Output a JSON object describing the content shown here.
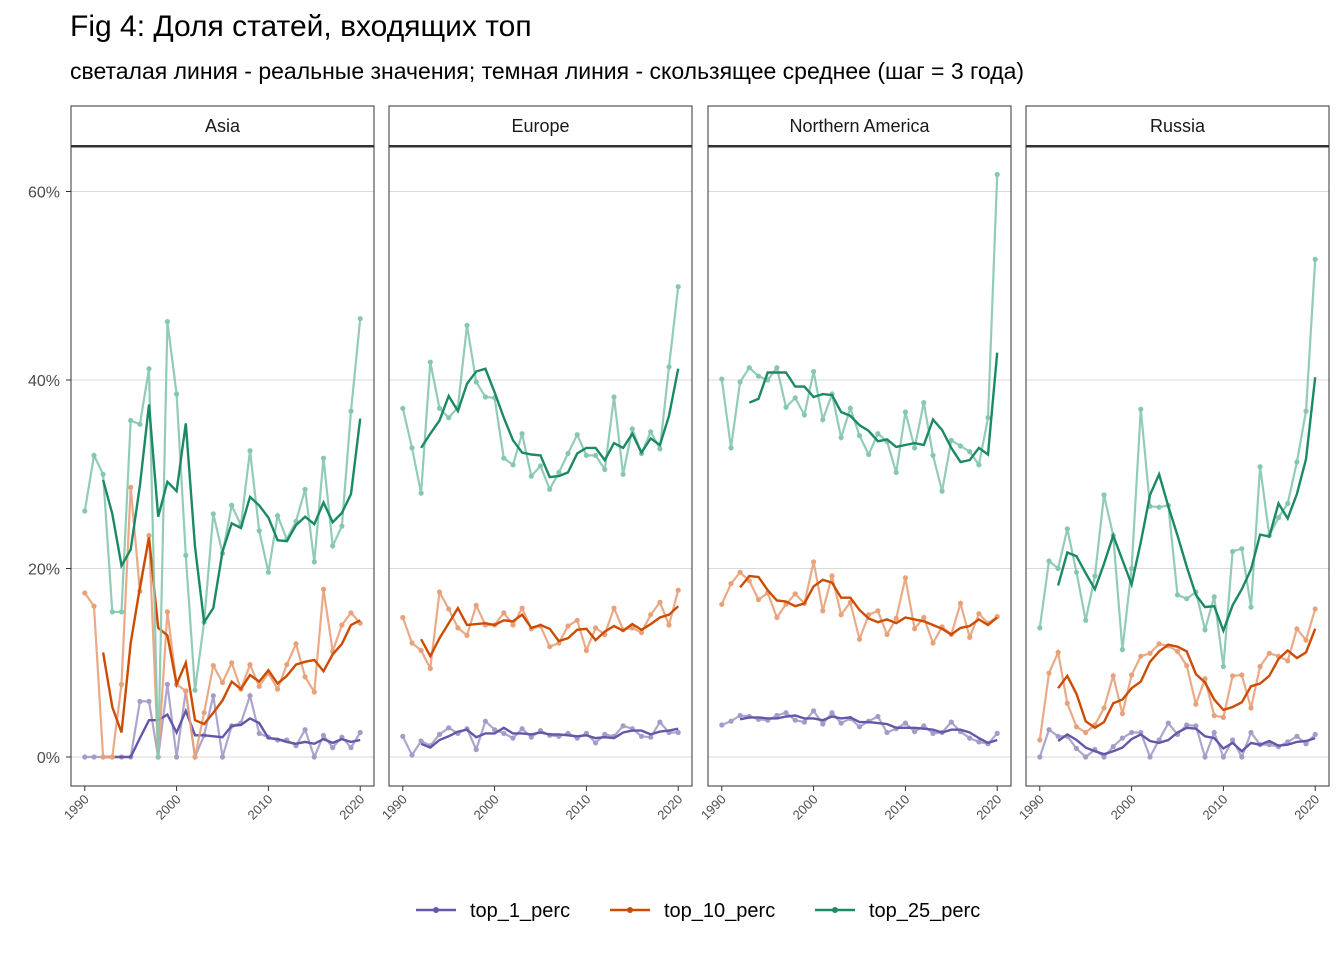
{
  "chart_data": {
    "type": "line",
    "title": "Fig 4: Доля статей, входящих топ",
    "subtitle": "светалая линия - реальные значения; темная линия - скользящее среднее (шаг = 3 года)",
    "xlabel": "",
    "ylabel": "",
    "x_ticks": [
      "1990",
      "2000",
      "2010",
      "2020"
    ],
    "y_ticks": [
      "0%",
      "20%",
      "40%",
      "60%"
    ],
    "ylim": [
      -3,
      65
    ],
    "xlim": [
      1988.5,
      2021.5
    ],
    "grid": true,
    "legend_position": "bottom",
    "x": [
      1990,
      1991,
      1992,
      1993,
      1994,
      1995,
      1996,
      1997,
      1998,
      1999,
      2000,
      2001,
      2002,
      2003,
      2004,
      2005,
      2006,
      2007,
      2008,
      2009,
      2010,
      2011,
      2012,
      2013,
      2014,
      2015,
      2016,
      2017,
      2018,
      2019,
      2020
    ],
    "series_meta": [
      {
        "key": "top_1_perc",
        "name": "top_1_perc",
        "color_light": "#a39cc9",
        "color_dark": "#6656a8"
      },
      {
        "key": "top_10_perc",
        "name": "top_10_perc",
        "color_light": "#e9a17a",
        "color_dark": "#cc4c02"
      },
      {
        "key": "top_25_perc",
        "name": "top_25_perc",
        "color_light": "#86c7af",
        "color_dark": "#1b8a64"
      }
    ],
    "panels": [
      {
        "name": "Asia",
        "top_1_perc": {
          "values": [
            0,
            0,
            0,
            0,
            0,
            0,
            5.9,
            5.9,
            0,
            7.7,
            0,
            7.0,
            0,
            2.3,
            6.5,
            0,
            3.3,
            3.6,
            6.5,
            2.5,
            2.1,
            1.8,
            1.8,
            1.2,
            2.9,
            0,
            2.3,
            1.0,
            2.1,
            1.0,
            2.6
          ],
          "smoothed": [
            null,
            null,
            0,
            0,
            0,
            0,
            2.0,
            3.9,
            3.9,
            4.5,
            2.6,
            4.9,
            2.3,
            2.3,
            2.2,
            2.1,
            3.3,
            3.4,
            4.1,
            3.6,
            2.0,
            1.9,
            1.6,
            1.4,
            1.6,
            1.4,
            1.9,
            1.5,
            1.9,
            1.6,
            1.8
          ]
        },
        "top_10_perc": {
          "values": [
            17.4,
            16.0,
            0,
            0,
            7.7,
            28.6,
            17.6,
            23.5,
            0,
            15.4,
            7.7,
            7.0,
            0,
            4.7,
            9.7,
            7.9,
            10.0,
            7.2,
            9.8,
            7.5,
            8.9,
            7.2,
            9.8,
            12.0,
            8.5,
            6.9,
            17.8,
            11.2,
            14.0,
            15.3,
            14.2
          ],
          "smoothed": [
            null,
            null,
            11.1,
            5.3,
            2.6,
            12.1,
            18.0,
            23.3,
            13.7,
            12.9,
            7.7,
            10.0,
            3.9,
            3.5,
            4.7,
            6.0,
            8.0,
            7.2,
            8.7,
            8.0,
            9.2,
            7.8,
            8.6,
            9.8,
            10.1,
            10.3,
            9.1,
            10.9,
            12.0,
            14.0,
            14.5
          ]
        },
        "top_25_perc": {
          "values": [
            26.1,
            32.0,
            30.0,
            15.4,
            15.4,
            35.7,
            35.3,
            41.2,
            0,
            46.2,
            38.5,
            21.4,
            7.1,
            14.3,
            25.8,
            21.6,
            26.7,
            24.6,
            32.5,
            24.0,
            19.6,
            25.6,
            23.1,
            25.0,
            28.4,
            20.7,
            31.7,
            22.4,
            24.5,
            36.7,
            46.5
          ],
          "smoothed": [
            null,
            null,
            29.4,
            25.8,
            20.3,
            22.0,
            28.8,
            37.4,
            25.5,
            29.2,
            28.2,
            35.4,
            22.3,
            14.3,
            15.8,
            21.8,
            24.8,
            24.3,
            27.6,
            26.7,
            25.4,
            23.0,
            22.9,
            24.6,
            25.5,
            24.7,
            27.0,
            24.9,
            25.9,
            27.9,
            35.9
          ]
        }
      },
      {
        "name": "Europe",
        "top_1_perc": {
          "values": [
            2.2,
            0.2,
            1.7,
            1.2,
            2.4,
            3.1,
            2.5,
            3.0,
            0.8,
            3.8,
            2.9,
            2.5,
            2.0,
            3.0,
            2.1,
            2.8,
            2.3,
            2.2,
            2.5,
            2.0,
            2.5,
            1.5,
            2.4,
            2.2,
            3.3,
            3.0,
            2.2,
            2.1,
            3.7,
            2.6,
            2.6
          ],
          "smoothed": [
            null,
            null,
            1.4,
            1.0,
            1.8,
            2.2,
            2.7,
            2.9,
            2.1,
            2.5,
            2.5,
            3.1,
            2.5,
            2.5,
            2.4,
            2.6,
            2.4,
            2.4,
            2.3,
            2.2,
            2.3,
            2.0,
            2.1,
            2.0,
            2.6,
            2.8,
            2.8,
            2.4,
            2.7,
            2.8,
            3.0
          ]
        },
        "top_10_perc": {
          "values": [
            14.8,
            12.1,
            11.3,
            9.4,
            17.5,
            15.7,
            13.7,
            12.9,
            16.1,
            14.0,
            14.0,
            15.3,
            14.0,
            15.8,
            13.6,
            13.9,
            11.7,
            12.1,
            13.9,
            14.5,
            11.3,
            13.7,
            13.0,
            15.8,
            13.5,
            13.7,
            13.2,
            15.1,
            16.4,
            14.0,
            17.7
          ],
          "smoothed": [
            null,
            null,
            12.5,
            10.7,
            12.6,
            14.2,
            15.8,
            14.0,
            14.1,
            14.2,
            14.0,
            14.5,
            14.4,
            15.1,
            13.7,
            14.0,
            13.6,
            12.3,
            12.6,
            13.5,
            13.6,
            12.4,
            13.3,
            13.9,
            13.4,
            14.1,
            13.5,
            14.1,
            14.8,
            15.1,
            16.0
          ]
        },
        "top_25_perc": {
          "values": [
            37.0,
            32.8,
            28.0,
            41.9,
            37.0,
            36.0,
            37.1,
            45.8,
            39.8,
            38.2,
            38.1,
            31.7,
            31.0,
            34.3,
            29.8,
            30.9,
            28.4,
            30.2,
            32.2,
            34.2,
            32.0,
            32.0,
            30.5,
            38.2,
            30.0,
            34.8,
            32.2,
            34.5,
            32.7,
            41.4,
            49.9
          ],
          "smoothed": [
            null,
            null,
            32.8,
            34.3,
            35.7,
            38.3,
            36.7,
            39.6,
            40.9,
            41.2,
            38.7,
            36.0,
            33.6,
            32.3,
            32.1,
            32.0,
            29.7,
            29.8,
            30.2,
            32.2,
            32.8,
            32.8,
            31.5,
            33.3,
            32.8,
            34.3,
            32.3,
            33.8,
            33.1,
            36.2,
            41.2
          ]
        }
      },
      {
        "name": "Northern America",
        "top_1_perc": {
          "values": [
            3.4,
            3.8,
            4.4,
            4.3,
            4.0,
            3.9,
            4.4,
            4.7,
            3.9,
            3.7,
            4.9,
            3.5,
            4.7,
            3.6,
            4.1,
            3.2,
            3.8,
            4.3,
            2.6,
            3.0,
            3.6,
            2.7,
            3.3,
            2.5,
            2.6,
            3.7,
            2.7,
            2.0,
            1.6,
            1.4,
            2.5
          ],
          "smoothed": [
            null,
            null,
            4.0,
            4.2,
            4.2,
            4.1,
            4.1,
            4.3,
            4.4,
            4.1,
            4.1,
            3.9,
            4.3,
            4.1,
            4.2,
            3.7,
            3.7,
            3.6,
            3.5,
            3.1,
            3.1,
            3.1,
            3.0,
            2.9,
            2.6,
            2.9,
            2.9,
            2.6,
            2.0,
            1.5,
            1.8
          ]
        },
        "top_10_perc": {
          "values": [
            16.2,
            18.4,
            19.6,
            18.7,
            16.7,
            17.4,
            14.8,
            16.2,
            17.3,
            16.3,
            20.7,
            15.5,
            19.2,
            15.1,
            16.4,
            12.5,
            15.1,
            15.5,
            13.0,
            14.7,
            19.0,
            13.6,
            14.8,
            12.1,
            13.8,
            13.0,
            16.3,
            12.7,
            15.2,
            14.2,
            14.9
          ],
          "smoothed": [
            null,
            null,
            18.0,
            19.2,
            19.1,
            17.7,
            16.6,
            16.5,
            16.0,
            16.3,
            18.1,
            18.8,
            18.5,
            16.9,
            16.9,
            15.6,
            14.7,
            14.3,
            14.6,
            14.2,
            14.8,
            14.6,
            14.4,
            14.0,
            13.6,
            13.0,
            13.7,
            13.9,
            14.6,
            14.0,
            14.8
          ]
        },
        "top_25_perc": {
          "values": [
            40.1,
            32.8,
            39.8,
            41.3,
            40.4,
            40.0,
            41.3,
            37.1,
            38.1,
            36.3,
            40.9,
            35.8,
            38.5,
            33.9,
            37.0,
            34.1,
            32.1,
            34.3,
            33.5,
            30.2,
            36.6,
            32.8,
            37.6,
            32.0,
            28.2,
            33.6,
            33.0,
            32.4,
            31.0,
            36.0,
            61.8
          ],
          "smoothed": [
            null,
            null,
            null,
            37.6,
            38.0,
            40.8,
            40.8,
            40.8,
            39.3,
            39.3,
            38.2,
            38.5,
            38.4,
            36.6,
            36.2,
            35.2,
            34.6,
            33.5,
            33.7,
            32.9,
            33.1,
            33.3,
            33.1,
            35.8,
            34.7,
            32.8,
            31.3,
            31.5,
            32.8,
            32.1,
            42.9
          ]
        }
      },
      {
        "name": "Russia",
        "top_1_perc": {
          "values": [
            0,
            2.9,
            2.2,
            2.2,
            0.9,
            0,
            0.8,
            0,
            1.1,
            2.0,
            2.6,
            2.6,
            0,
            1.8,
            3.6,
            2.4,
            3.4,
            3.3,
            0,
            2.6,
            0,
            1.8,
            0,
            2.6,
            1.3,
            1.3,
            1.1,
            1.6,
            2.2,
            1.4,
            2.4
          ],
          "smoothed": [
            null,
            null,
            1.7,
            2.4,
            1.8,
            1.0,
            0.6,
            0.3,
            0.6,
            1.0,
            1.9,
            2.4,
            1.7,
            1.5,
            1.8,
            2.6,
            3.1,
            3.0,
            2.2,
            2.0,
            0.9,
            1.5,
            0.6,
            1.5,
            1.3,
            1.7,
            1.2,
            1.3,
            1.6,
            1.7,
            2.0
          ]
        },
        "top_10_perc": {
          "values": [
            1.8,
            8.9,
            11.1,
            5.7,
            3.2,
            2.6,
            3.4,
            5.2,
            8.6,
            4.6,
            8.7,
            10.7,
            11.0,
            12.0,
            11.8,
            11.2,
            9.7,
            5.6,
            8.3,
            4.4,
            4.2,
            8.6,
            8.7,
            5.2,
            9.6,
            11.0,
            10.7,
            10.2,
            13.6,
            12.4,
            15.7
          ],
          "smoothed": [
            null,
            null,
            7.3,
            8.6,
            6.7,
            3.8,
            3.1,
            3.7,
            5.7,
            6.1,
            7.3,
            8.0,
            10.1,
            11.2,
            11.9,
            11.7,
            11.2,
            8.8,
            7.9,
            6.1,
            5.0,
            5.3,
            5.8,
            7.5,
            7.8,
            8.6,
            10.4,
            11.3,
            10.5,
            11.1,
            13.6
          ]
        },
        "top_25_perc": {
          "values": [
            13.7,
            20.8,
            20.0,
            24.2,
            19.6,
            14.5,
            19.2,
            27.8,
            23.5,
            11.4,
            20.0,
            36.9,
            26.6,
            26.5,
            26.7,
            17.2,
            16.8,
            17.5,
            13.5,
            17.0,
            9.6,
            21.8,
            22.1,
            15.9,
            30.8,
            23.5,
            25.4,
            26.9,
            31.3,
            36.7,
            52.8
          ],
          "smoothed": [
            null,
            null,
            18.2,
            21.7,
            21.3,
            19.5,
            17.8,
            20.5,
            23.5,
            20.9,
            18.3,
            22.8,
            27.8,
            30.0,
            26.6,
            23.5,
            20.2,
            17.2,
            15.9,
            16.0,
            13.4,
            16.1,
            17.8,
            19.9,
            23.6,
            23.4,
            26.9,
            25.3,
            27.9,
            31.6,
            40.3
          ]
        }
      }
    ]
  }
}
